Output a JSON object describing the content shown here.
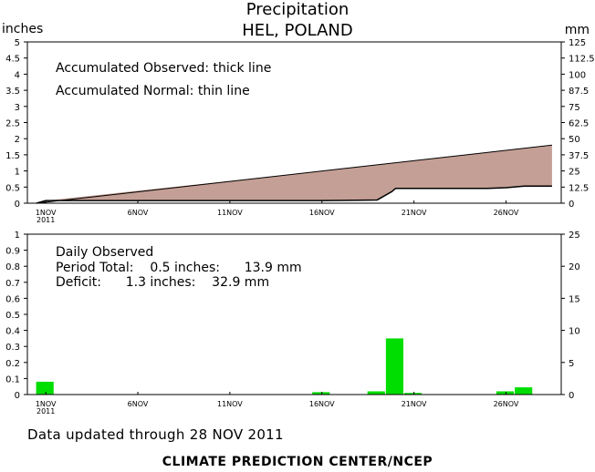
{
  "header": {
    "title": "Precipitation",
    "subtitle": "HEL, POLAND",
    "unit_left": "inches",
    "unit_right": "mm"
  },
  "footer": {
    "updated": "Data updated through 28 NOV 2011",
    "credit": "CLIMATE PREDICTION CENTER/NCEP"
  },
  "chart_data": [
    {
      "type": "area",
      "notes": [
        "Accumulated Observed: thick line",
        "Accumulated Normal: thin line"
      ],
      "ylim_in": [
        0,
        5
      ],
      "ylim_mm": [
        0,
        125
      ],
      "y_ticks_in": [
        "0",
        "0.5",
        "1",
        "1.5",
        "2",
        "2.5",
        "3",
        "3.5",
        "4",
        "4.5",
        "5"
      ],
      "y_ticks_mm": [
        "0",
        "12.5",
        "25",
        "37.5",
        "50",
        "62.5",
        "75",
        "87.5",
        "100",
        "112.5",
        "125"
      ],
      "x_ticks": [
        {
          "day": 1,
          "label": "1NOV",
          "sub": "2011"
        },
        {
          "day": 6,
          "label": "6NOV",
          "sub": ""
        },
        {
          "day": 11,
          "label": "11NOV",
          "sub": ""
        },
        {
          "day": 16,
          "label": "16NOV",
          "sub": ""
        },
        {
          "day": 21,
          "label": "21NOV",
          "sub": ""
        },
        {
          "day": 26,
          "label": "26NOV",
          "sub": ""
        }
      ],
      "x_range": [
        0,
        29
      ],
      "normal": {
        "x": [
          0.5,
          28.5
        ],
        "y": [
          0.0,
          1.8
        ]
      },
      "observed": {
        "x": [
          0.5,
          1,
          16,
          19,
          19.8,
          20,
          25,
          26,
          27,
          28.5
        ],
        "y": [
          0.0,
          0.08,
          0.08,
          0.1,
          0.36,
          0.46,
          0.46,
          0.48,
          0.53,
          0.53
        ]
      },
      "fill_color": "#c49f95"
    },
    {
      "type": "bar",
      "notes": [
        "Daily Observed",
        "Period Total:    0.5 inches:      13.9 mm",
        "Deficit:      1.3 inches:    32.9 mm"
      ],
      "ylim_in": [
        0,
        1
      ],
      "ylim_mm": [
        0,
        25
      ],
      "y_ticks_in": [
        "0",
        "0.1",
        "0.2",
        "0.3",
        "0.4",
        "0.5",
        "0.6",
        "0.7",
        "0.8",
        "0.9",
        "1"
      ],
      "y_ticks_mm": [
        "0",
        "5",
        "10",
        "15",
        "20",
        "25"
      ],
      "x_ticks": [
        {
          "day": 1,
          "label": "1NOV",
          "sub": "2011"
        },
        {
          "day": 6,
          "label": "6NOV",
          "sub": ""
        },
        {
          "day": 11,
          "label": "11NOV",
          "sub": ""
        },
        {
          "day": 16,
          "label": "16NOV",
          "sub": ""
        },
        {
          "day": 21,
          "label": "21NOV",
          "sub": ""
        },
        {
          "day": 26,
          "label": "26NOV",
          "sub": ""
        }
      ],
      "x_range": [
        0,
        29
      ],
      "days": [
        1,
        16,
        19,
        20,
        21,
        26,
        27
      ],
      "values": [
        0.08,
        0.015,
        0.02,
        0.35,
        0.01,
        0.02,
        0.045
      ],
      "bar_color": "#00dd00"
    }
  ]
}
